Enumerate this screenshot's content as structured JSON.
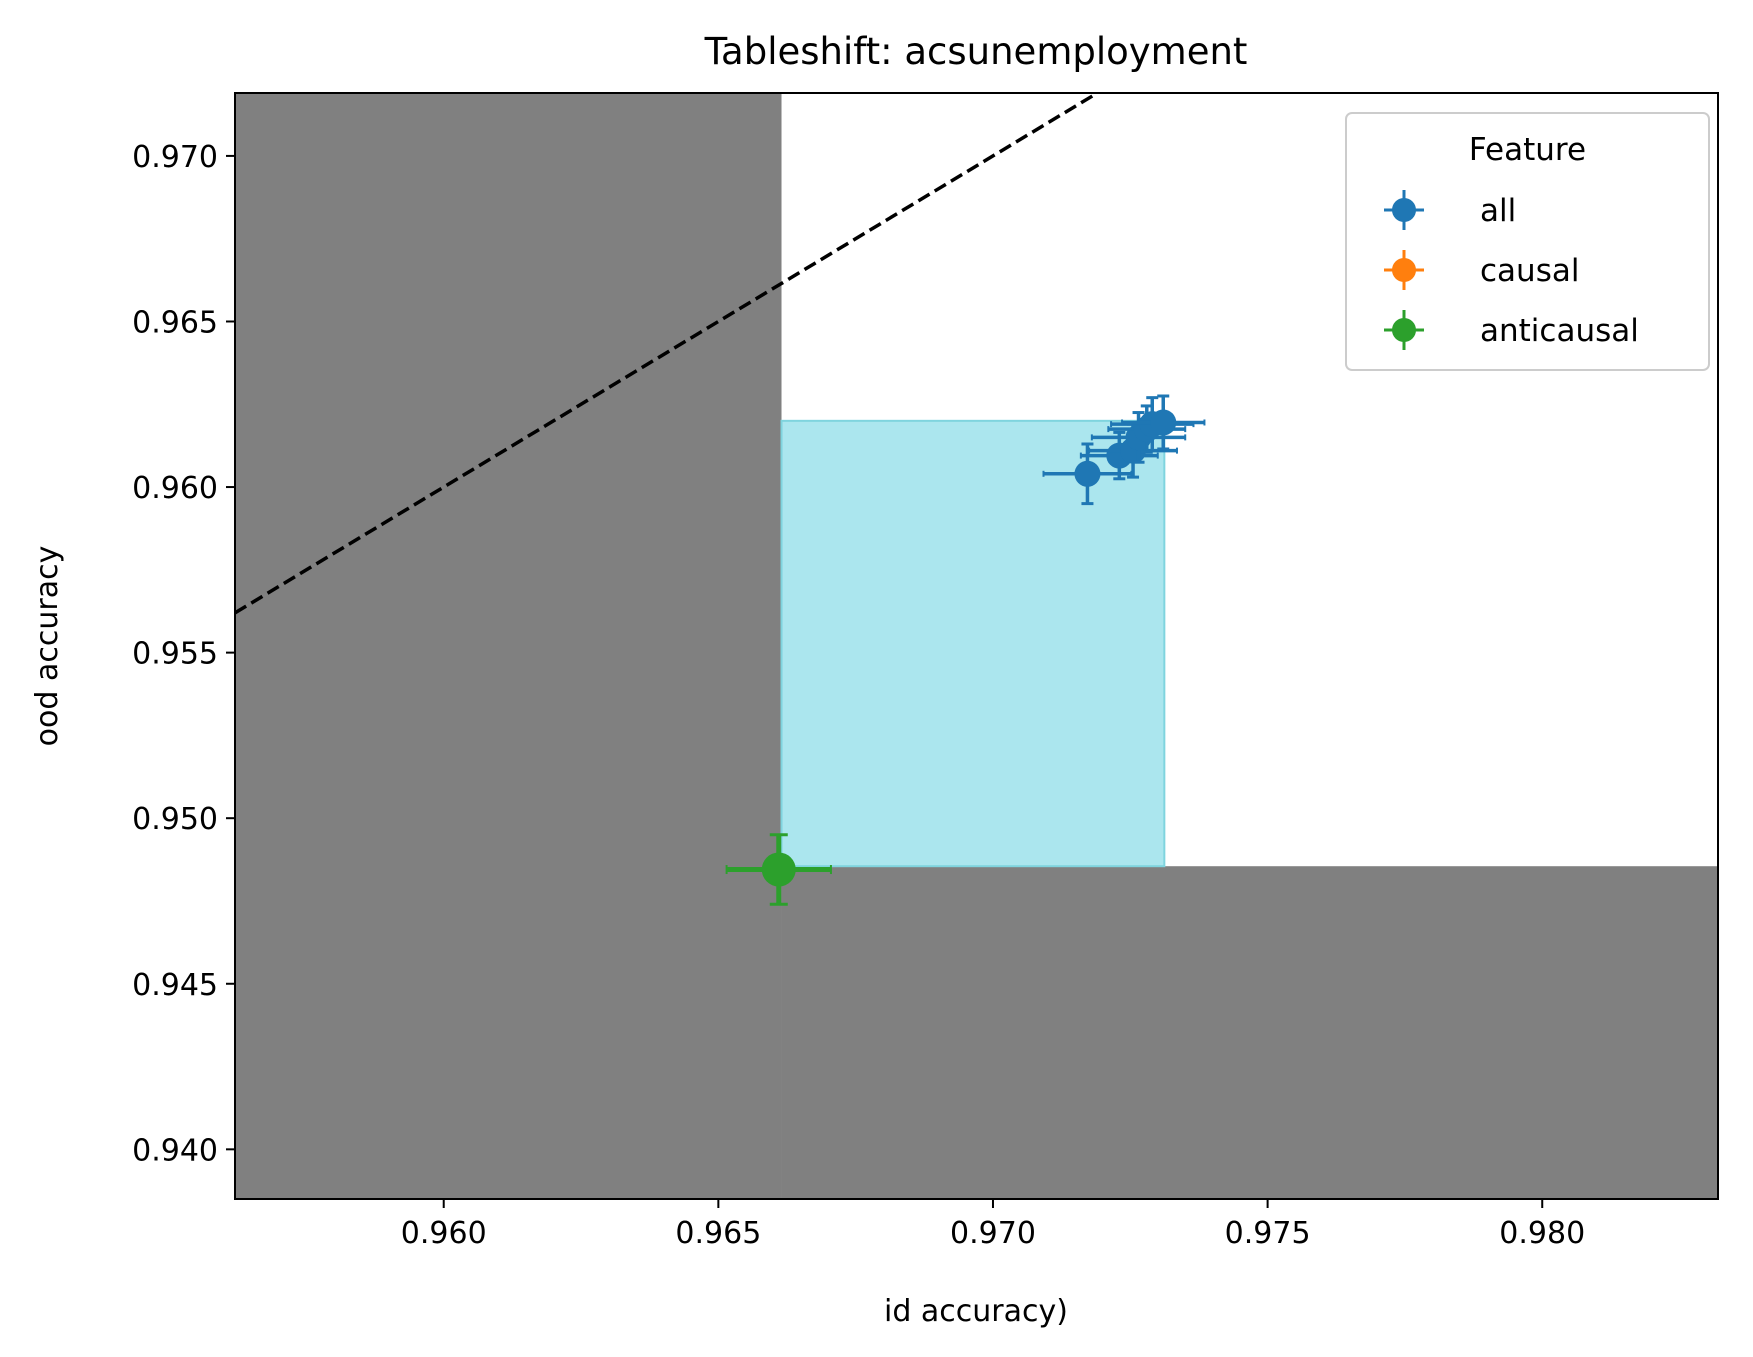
{
  "chart_data": {
    "type": "scatter",
    "title": "Tableshift: acsunemployment",
    "xlabel": "id accuracy)",
    "ylabel": "ood accuracy",
    "xlim": [
      0.9562,
      0.9832
    ],
    "ylim": [
      0.9385,
      0.9719
    ],
    "x_ticks": [
      0.96,
      0.965,
      0.97,
      0.975,
      0.98
    ],
    "x_tick_labels": [
      "0.960",
      "0.965",
      "0.970",
      "0.975",
      "0.980"
    ],
    "y_ticks": [
      0.94,
      0.945,
      0.95,
      0.955,
      0.96,
      0.965,
      0.97
    ],
    "y_tick_labels": [
      "0.940",
      "0.945",
      "0.950",
      "0.955",
      "0.960",
      "0.965",
      "0.970"
    ],
    "grid": false,
    "legend": {
      "title": "Feature",
      "placement": "top-right",
      "entries": [
        {
          "label": "all",
          "color": "#1f77b4"
        },
        {
          "label": "causal",
          "color": "#ff7f0e"
        },
        {
          "label": "anticausal",
          "color": "#2ca02c"
        }
      ]
    },
    "reference_line": {
      "style": "dashed",
      "color": "#000000",
      "slope": 1,
      "intercept": 0
    },
    "shaded_regions": [
      {
        "color": "#808080",
        "x": [
          0.9562,
          0.96615
        ],
        "y": [
          0.9385,
          0.9719
        ]
      },
      {
        "color": "#808080",
        "x": [
          0.96615,
          0.9832
        ],
        "y": [
          0.9385,
          0.94855
        ]
      },
      {
        "color": "#abe6ee",
        "x": [
          0.96615,
          0.97312
        ],
        "y": [
          0.94855,
          0.962
        ]
      }
    ],
    "series": [
      {
        "name": "all",
        "color": "#1f77b4",
        "points": [
          {
            "x": 0.97172,
            "y": 0.9604,
            "xerr": 0.0008,
            "yerr": 0.0009
          },
          {
            "x": 0.9723,
            "y": 0.96095,
            "xerr": 0.0007,
            "yerr": 0.0007
          },
          {
            "x": 0.97255,
            "y": 0.9611,
            "xerr": 0.0008,
            "yerr": 0.0008
          },
          {
            "x": 0.97265,
            "y": 0.9615,
            "xerr": 0.00085,
            "yerr": 0.00075
          },
          {
            "x": 0.9728,
            "y": 0.96175,
            "xerr": 0.0007,
            "yerr": 0.0007
          },
          {
            "x": 0.9729,
            "y": 0.9619,
            "xerr": 0.00075,
            "yerr": 0.0008
          },
          {
            "x": 0.9731,
            "y": 0.96195,
            "xerr": 0.00075,
            "yerr": 0.0008
          }
        ]
      },
      {
        "name": "anticausal",
        "color": "#2ca02c",
        "points": [
          {
            "x": 0.9661,
            "y": 0.94845,
            "xerr": 0.00095,
            "yerr": 0.00105
          }
        ]
      }
    ]
  }
}
